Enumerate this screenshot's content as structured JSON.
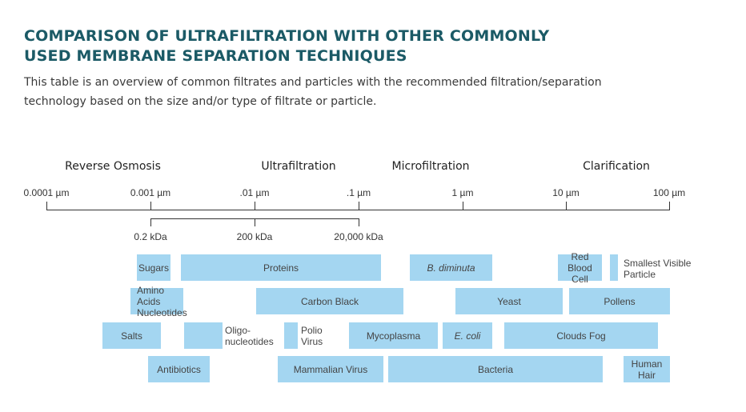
{
  "header": {
    "title_line1": "COMPARISON OF ULTRAFILTRATION WITH OTHER COMMONLY",
    "title_line2": "USED MEMBRANE SEPARATION TECHNIQUES",
    "subtitle_line1": "This table is an overview of common filtrates and particles with the recommended filtration/separation",
    "subtitle_line2": "technology based on the size and/or type of filtrate or particle."
  },
  "diagram": {
    "categories": [
      "Reverse Osmosis",
      "Ultrafiltration",
      "Microfiltration",
      "Clarification"
    ],
    "scale_ticks": [
      "0.0001 µm",
      "0.001 µm",
      ".01 µm",
      ".1 µm",
      "1 µm",
      "10 µm",
      "100 µm"
    ],
    "kda_ticks": [
      "0.2 kDa",
      "200 kDa",
      "20,000 kDa"
    ],
    "particles": {
      "sugars": "Sugars",
      "proteins": "Proteins",
      "b_diminuta": "B. diminuta",
      "red_blood_cell": "Red Blood Cell",
      "smallest_visible_particle": "Smallest Visible Particle",
      "amino_acids": "Amino Acids Nucleotides",
      "carbon_black": "Carbon Black",
      "yeast": "Yeast",
      "pollens": "Pollens",
      "salts": "Salts",
      "oligonucleotides": "Oligo- nucleotides",
      "polio_virus": "Polio Virus",
      "mycoplasma": "Mycoplasma",
      "e_coli": "E. coli",
      "clouds_fog": "Clouds Fog",
      "antibiotics": "Antibiotics",
      "mammalian_virus": "Mammalian Virus",
      "bacteria": "Bacteria",
      "human_hair": "Human Hair"
    }
  },
  "colors": {
    "title": "#1b5a66",
    "bar": "#a4d6f1",
    "axis": "#333333"
  }
}
